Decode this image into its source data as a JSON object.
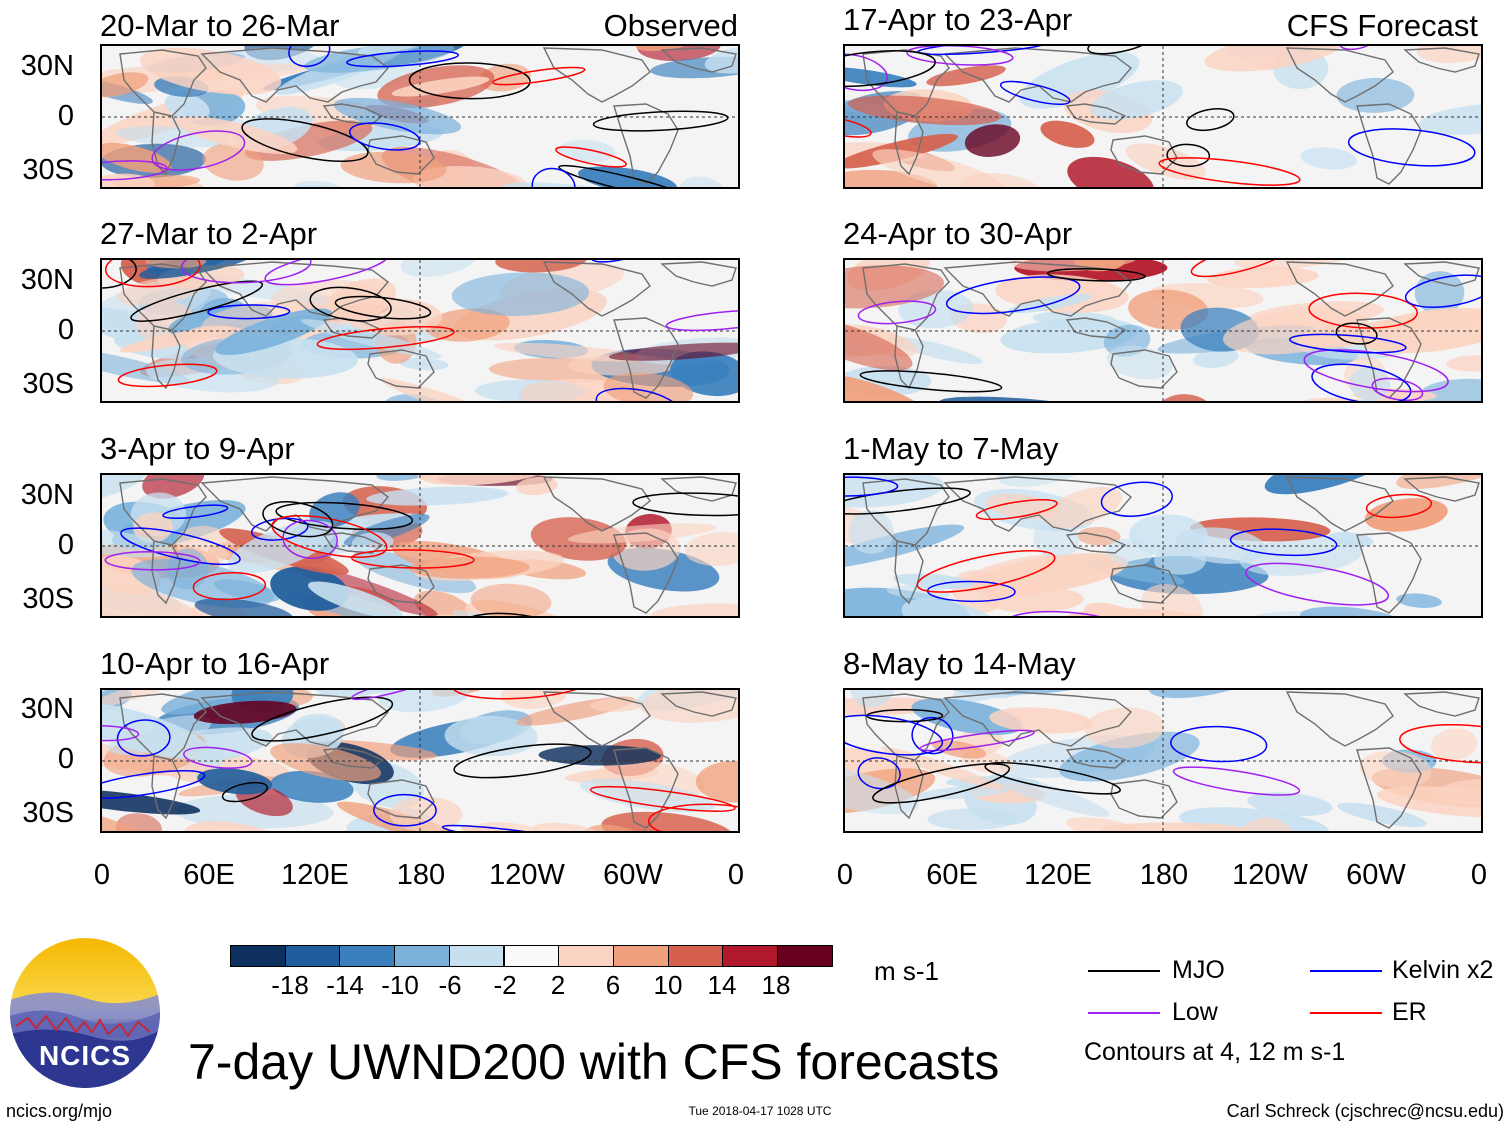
{
  "headers": {
    "observed": "Observed",
    "forecast": "CFS Forecast"
  },
  "panels": {
    "left": [
      {
        "title": "20-Mar to 26-Mar"
      },
      {
        "title": "27-Mar to 2-Apr"
      },
      {
        "title": "3-Apr to 9-Apr"
      },
      {
        "title": "10-Apr to 16-Apr"
      }
    ],
    "right": [
      {
        "title": "17-Apr to 23-Apr"
      },
      {
        "title": "24-Apr to 30-Apr"
      },
      {
        "title": "1-May to 7-May"
      },
      {
        "title": "8-May to 14-May"
      }
    ]
  },
  "axes": {
    "y": [
      "30N",
      "0",
      "30S"
    ],
    "x": [
      "0",
      "60E",
      "120E",
      "180",
      "120W",
      "60W",
      "0"
    ]
  },
  "colorbar": {
    "colors": [
      "#0d2f5e",
      "#1f5d9c",
      "#3a80bd",
      "#7bb2dc",
      "#c7e0f0",
      "#fafafa",
      "#fbd3c1",
      "#f0a07c",
      "#d6604d",
      "#b2182b",
      "#67001f"
    ],
    "labels": [
      "-18",
      "-14",
      "-10",
      "-6",
      "-2",
      "2",
      "6",
      "10",
      "14",
      "18"
    ],
    "units": "m s-1"
  },
  "legend": {
    "items": [
      {
        "label": "MJO",
        "color": "#000000"
      },
      {
        "label": "Kelvin x2",
        "color": "#0000ff"
      },
      {
        "label": "Low",
        "color": "#a020f0"
      },
      {
        "label": "ER",
        "color": "#ff0000"
      }
    ],
    "note": "Contours at 4, 12 m s-1"
  },
  "title": "7-day UWND200 with CFS forecasts",
  "logo_text": "NCICS",
  "footer": {
    "left": "ncics.org/mjo",
    "center": "Tue 2018-04-17 1028 UTC",
    "right": "Carl Schreck (cjschrec@ncsu.edu)"
  }
}
